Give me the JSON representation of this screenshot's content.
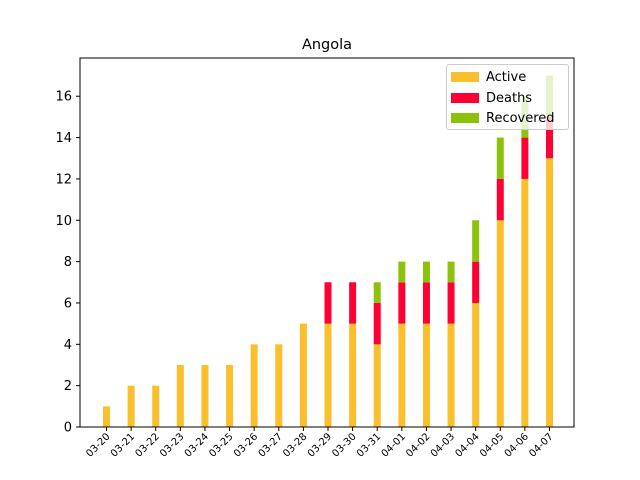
{
  "chart_data": {
    "type": "bar",
    "stacked": true,
    "title": "Angola",
    "xlabel": "",
    "ylabel": "",
    "ylim": [
      0,
      17.85
    ],
    "yticks": [
      0,
      2,
      4,
      6,
      8,
      10,
      12,
      14,
      16
    ],
    "grid": false,
    "legend_position": "top-right",
    "categories": [
      "03-20",
      "03-21",
      "03-22",
      "03-23",
      "03-24",
      "03-25",
      "03-26",
      "03-27",
      "03-28",
      "03-29",
      "03-30",
      "03-31",
      "04-01",
      "04-02",
      "04-03",
      "04-04",
      "04-05",
      "04-06",
      "04-07"
    ],
    "series": [
      {
        "name": "Active",
        "color": "#fbbf2b",
        "values": [
          1,
          2,
          2,
          3,
          3,
          3,
          4,
          4,
          5,
          5,
          5,
          4,
          5,
          5,
          5,
          6,
          10,
          12,
          13
        ]
      },
      {
        "name": "Deaths",
        "color": "#ff0035",
        "values": [
          0,
          0,
          0,
          0,
          0,
          0,
          0,
          0,
          0,
          2,
          2,
          2,
          2,
          2,
          2,
          2,
          2,
          2,
          2
        ]
      },
      {
        "name": "Recovered",
        "color": "#8cc20a",
        "values": [
          0,
          0,
          0,
          0,
          0,
          0,
          0,
          0,
          0,
          0,
          0,
          1,
          1,
          1,
          1,
          2,
          2,
          2,
          2
        ]
      }
    ]
  }
}
